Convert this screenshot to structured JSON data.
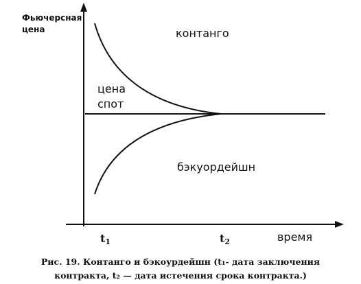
{
  "axes": {
    "y_label_line1": "Фьючерсная",
    "y_label_line2": "цена",
    "x_label": "время"
  },
  "regions": {
    "contango": "контанго",
    "spot_line1": "цена",
    "spot_line2": "спот",
    "backwardation": "бэкуордейшн"
  },
  "ticks": {
    "t1": "t",
    "t1_sub": "1",
    "t2": "t",
    "t2_sub": "2"
  },
  "caption": {
    "line1": "Рис. 19. Контанго и бэкоурдейшн (t₁- дата заключения",
    "line2": "контракта, t₂ — дата истечения срока контракта.)"
  }
}
